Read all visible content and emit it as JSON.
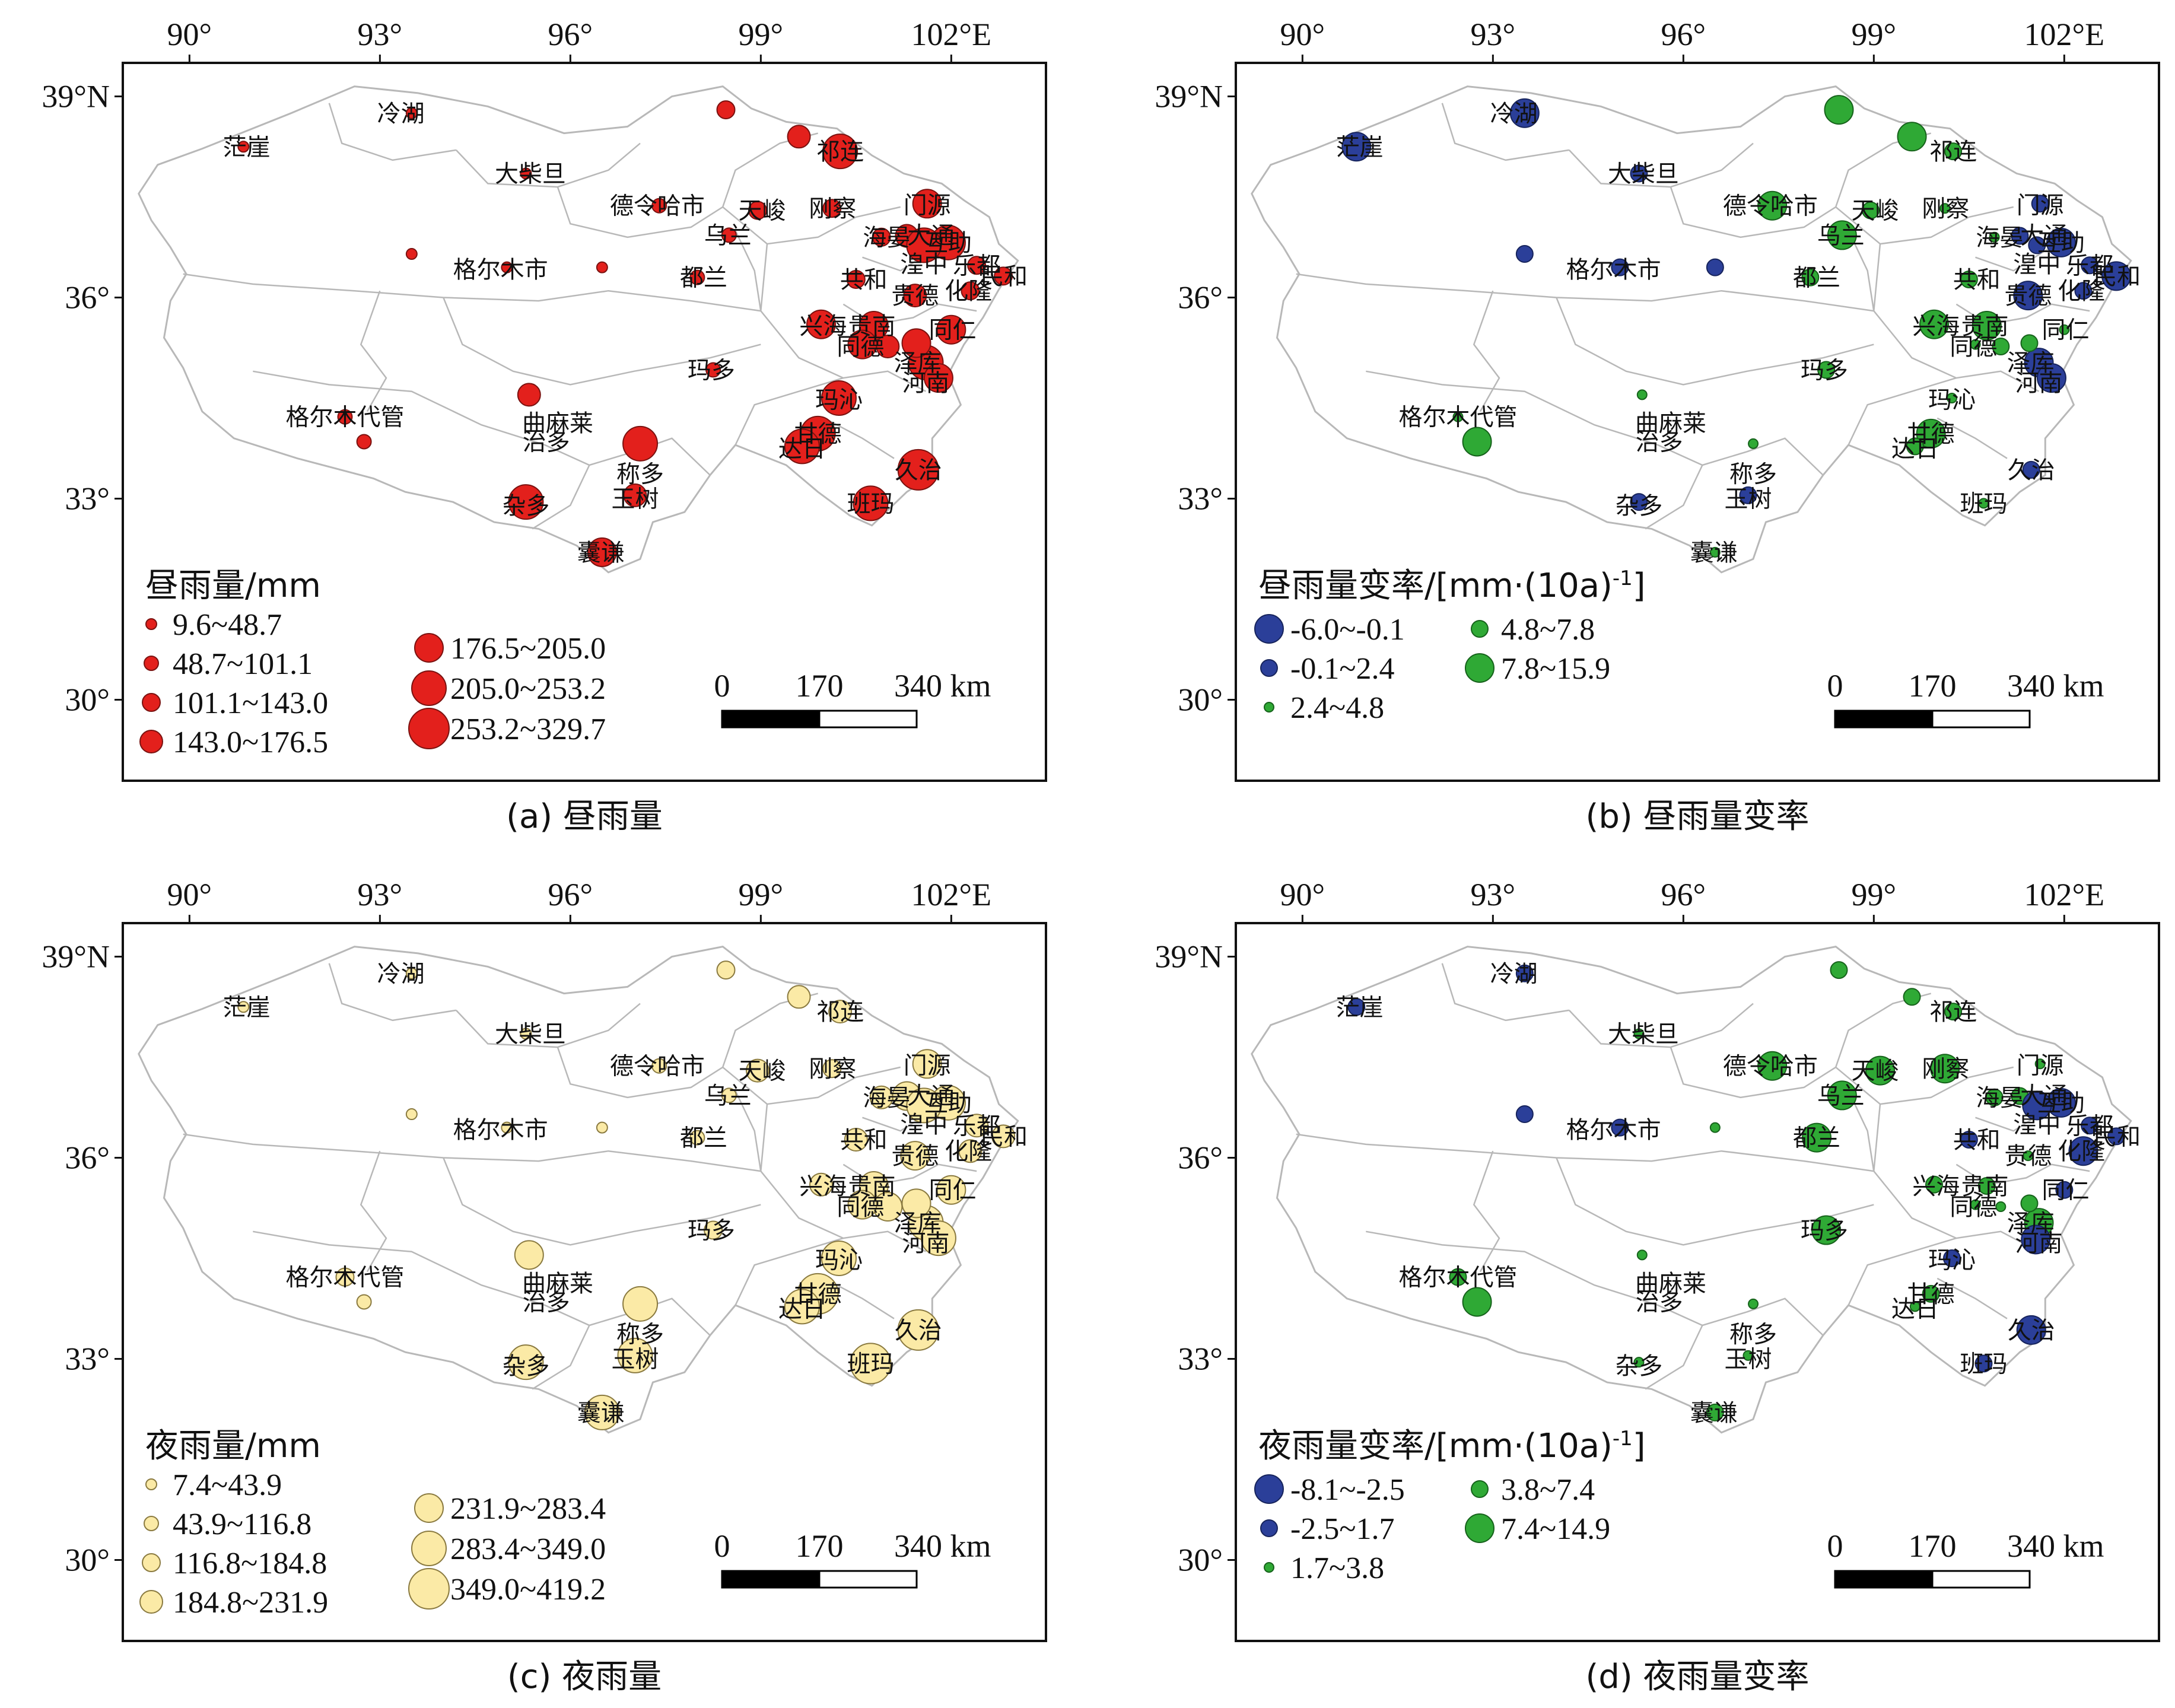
{
  "lon_ticks": [
    "90°",
    "93°",
    "96°",
    "99°",
    "102°E"
  ],
  "lat_ticks": [
    "39°N",
    "36°",
    "33°",
    "30°"
  ],
  "scale_bar": {
    "labels": [
      "0",
      "170",
      "340",
      "km"
    ]
  },
  "stations": [
    {
      "name": "茫崖",
      "lon": 90.9,
      "lat": 38.25
    },
    {
      "name": "冷湖",
      "lon": 93.33,
      "lat": 38.75
    },
    {
      "name": "大柴旦",
      "lon": 95.37,
      "lat": 37.85
    },
    {
      "name": "德令哈市",
      "lon": 97.37,
      "lat": 37.37
    },
    {
      "name": "天峻",
      "lon": 99.02,
      "lat": 37.3
    },
    {
      "name": "祁连",
      "lon": 100.25,
      "lat": 38.18
    },
    {
      "name": "刚察",
      "lon": 100.13,
      "lat": 37.33
    },
    {
      "name": "门源",
      "lon": 101.62,
      "lat": 37.38
    },
    {
      "name": "大通",
      "lon": 101.68,
      "lat": 36.93
    },
    {
      "name": "海晏",
      "lon": 100.98,
      "lat": 36.9
    },
    {
      "name": "互助",
      "lon": 101.95,
      "lat": 36.82
    },
    {
      "name": "乐都",
      "lon": 102.4,
      "lat": 36.48
    },
    {
      "name": "湟中",
      "lon": 101.57,
      "lat": 36.5
    },
    {
      "name": "化隆",
      "lon": 102.27,
      "lat": 36.1
    },
    {
      "name": "民和",
      "lon": 102.83,
      "lat": 36.32
    },
    {
      "name": "乌兰",
      "lon": 98.48,
      "lat": 36.93
    },
    {
      "name": "共和",
      "lon": 100.62,
      "lat": 36.27
    },
    {
      "name": "贵南",
      "lon": 100.75,
      "lat": 35.58
    },
    {
      "name": "贵德",
      "lon": 101.43,
      "lat": 36.03
    },
    {
      "name": "同仁",
      "lon": 102.02,
      "lat": 35.52
    },
    {
      "name": "格尔木市",
      "lon": 94.9,
      "lat": 36.42
    },
    {
      "name": "都兰",
      "lon": 98.1,
      "lat": 36.3
    },
    {
      "name": "兴海",
      "lon": 99.98,
      "lat": 35.58
    },
    {
      "name": "同德",
      "lon": 100.57,
      "lat": 35.27
    },
    {
      "name": "泽库",
      "lon": 101.47,
      "lat": 35.03
    },
    {
      "name": "治多",
      "lon": 95.62,
      "lat": 33.85
    },
    {
      "name": "曲麻莱",
      "lon": 95.8,
      "lat": 34.13
    },
    {
      "name": "玛多",
      "lon": 98.22,
      "lat": 34.92
    },
    {
      "name": "玛沁",
      "lon": 100.23,
      "lat": 34.48
    },
    {
      "name": "河南",
      "lon": 101.6,
      "lat": 34.73
    },
    {
      "name": "格尔木代管",
      "lon": 92.45,
      "lat": 34.22
    },
    {
      "name": "称多",
      "lon": 97.1,
      "lat": 33.37
    },
    {
      "name": "甘德",
      "lon": 99.9,
      "lat": 33.97
    },
    {
      "name": "达日",
      "lon": 99.65,
      "lat": 33.75
    },
    {
      "name": "久治",
      "lon": 101.48,
      "lat": 33.43
    },
    {
      "name": "杂多",
      "lon": 95.3,
      "lat": 32.9
    },
    {
      "name": "玉树",
      "lon": 97.02,
      "lat": 33.0
    },
    {
      "name": "班玛",
      "lon": 100.73,
      "lat": 32.93
    },
    {
      "name": "囊谦",
      "lon": 96.48,
      "lat": 32.2
    }
  ],
  "colors": {
    "red": "#e3201c",
    "cream": "#fbeaa6",
    "cream_edge": "#8a7a40",
    "blue": "#2b3f99",
    "green": "#2fa935",
    "outline": "#b8b8b8"
  },
  "panels": [
    {
      "id": "a",
      "caption": "(a) 昼雨量",
      "legend_title": "昼雨量/mm",
      "color": "red",
      "classes": [
        {
          "label": "9.6~48.7",
          "size": 1
        },
        {
          "label": "48.7~101.1",
          "size": 2
        },
        {
          "label": "101.1~143.0",
          "size": 3
        },
        {
          "label": "143.0~176.5",
          "size": 4
        },
        {
          "label": "176.5~205.0",
          "size": 5
        },
        {
          "label": "205.0~253.2",
          "size": 6
        },
        {
          "label": "253.2~329.7",
          "size": 7
        }
      ]
    },
    {
      "id": "b",
      "caption": "(b) 昼雨量变率",
      "legend_title": "昼雨量变率/[mm·(10a)",
      "legend_sup": "-1",
      "legend_title_end": "]",
      "classes": [
        {
          "label": "-6.0~-0.1",
          "size": 5,
          "color": "blue"
        },
        {
          "label": "-0.1~2.4",
          "size": 3,
          "color": "blue"
        },
        {
          "label": "2.4~4.8",
          "size": 1,
          "color": "green"
        },
        {
          "label": "4.8~7.8",
          "size": 3,
          "color": "green"
        },
        {
          "label": "7.8~15.9",
          "size": 5,
          "color": "green"
        }
      ]
    },
    {
      "id": "c",
      "caption": "(c) 夜雨量",
      "legend_title": "夜雨量/mm",
      "color": "cream",
      "classes": [
        {
          "label": "7.4~43.9",
          "size": 1
        },
        {
          "label": "43.9~116.8",
          "size": 2
        },
        {
          "label": "116.8~184.8",
          "size": 3
        },
        {
          "label": "184.8~231.9",
          "size": 4
        },
        {
          "label": "231.9~283.4",
          "size": 5
        },
        {
          "label": "283.4~349.0",
          "size": 6
        },
        {
          "label": "349.0~419.2",
          "size": 7
        }
      ]
    },
    {
      "id": "d",
      "caption": "(d) 夜雨量变率",
      "legend_title": "夜雨量变率/[mm·(10a)",
      "legend_sup": "-1",
      "legend_title_end": "]",
      "classes": [
        {
          "label": "-8.1~-2.5",
          "size": 5,
          "color": "blue"
        },
        {
          "label": "-2.5~1.7",
          "size": 3,
          "color": "blue"
        },
        {
          "label": "1.7~3.8",
          "size": 1,
          "color": "green"
        },
        {
          "label": "3.8~7.4",
          "size": 3,
          "color": "green"
        },
        {
          "label": "7.4~14.9",
          "size": 5,
          "color": "green"
        }
      ]
    }
  ],
  "points": {
    "a": [
      [
        90.85,
        38.25,
        1
      ],
      [
        93.5,
        38.75,
        1
      ],
      [
        95.3,
        37.85,
        1
      ],
      [
        97.4,
        37.37,
        2
      ],
      [
        98.45,
        38.8,
        3
      ],
      [
        98.95,
        37.3,
        3
      ],
      [
        99.6,
        38.4,
        4
      ],
      [
        100.25,
        38.18,
        6
      ],
      [
        100.12,
        37.33,
        3
      ],
      [
        101.62,
        37.4,
        5
      ],
      [
        101.3,
        36.92,
        4
      ],
      [
        100.9,
        36.9,
        3
      ],
      [
        101.95,
        36.82,
        6
      ],
      [
        102.4,
        36.48,
        3
      ],
      [
        101.57,
        36.78,
        6
      ],
      [
        102.3,
        36.1,
        3
      ],
      [
        102.82,
        36.32,
        3
      ],
      [
        98.5,
        36.93,
        2
      ],
      [
        100.5,
        36.27,
        3
      ],
      [
        100.78,
        35.58,
        5
      ],
      [
        101.0,
        35.27,
        4
      ],
      [
        101.43,
        36.03,
        4
      ],
      [
        102.0,
        35.52,
        5
      ],
      [
        101.6,
        35.03,
        6
      ],
      [
        101.8,
        34.8,
        5
      ],
      [
        93.5,
        36.65,
        1
      ],
      [
        95.0,
        36.45,
        1
      ],
      [
        96.5,
        36.45,
        1
      ],
      [
        98.0,
        36.3,
        2
      ],
      [
        99.95,
        35.6,
        5
      ],
      [
        100.6,
        35.3,
        5
      ],
      [
        101.45,
        35.32,
        5
      ],
      [
        92.75,
        33.85,
        2
      ],
      [
        95.35,
        34.55,
        4
      ],
      [
        98.25,
        34.92,
        2
      ],
      [
        100.23,
        34.5,
        6
      ],
      [
        92.45,
        34.22,
        2
      ],
      [
        97.1,
        33.82,
        6
      ],
      [
        99.9,
        33.97,
        6
      ],
      [
        99.65,
        33.78,
        6
      ],
      [
        101.48,
        33.43,
        7
      ],
      [
        95.3,
        32.95,
        6
      ],
      [
        97.02,
        33.05,
        4
      ],
      [
        100.73,
        32.93,
        6
      ],
      [
        96.5,
        32.2,
        5
      ]
    ],
    "b": [
      [
        90.85,
        38.25,
        "nb"
      ],
      [
        93.5,
        38.75,
        "nb"
      ],
      [
        95.3,
        37.85,
        "sb"
      ],
      [
        97.4,
        37.37,
        "ng"
      ],
      [
        98.45,
        38.8,
        "ng"
      ],
      [
        98.95,
        37.3,
        "sg"
      ],
      [
        99.6,
        38.4,
        "ng"
      ],
      [
        100.25,
        38.18,
        "sg"
      ],
      [
        100.12,
        37.33,
        "xg"
      ],
      [
        101.62,
        37.4,
        "sb"
      ],
      [
        101.3,
        36.92,
        "sb"
      ],
      [
        100.9,
        36.9,
        "xg"
      ],
      [
        101.95,
        36.82,
        "nb"
      ],
      [
        102.4,
        36.48,
        "sb"
      ],
      [
        101.57,
        36.78,
        "sb"
      ],
      [
        102.3,
        36.1,
        "sb"
      ],
      [
        102.82,
        36.32,
        "nb"
      ],
      [
        98.5,
        36.93,
        "ng"
      ],
      [
        100.5,
        36.27,
        "sg"
      ],
      [
        100.78,
        35.58,
        "ng"
      ],
      [
        101.0,
        35.27,
        "sg"
      ],
      [
        101.43,
        36.03,
        "nb"
      ],
      [
        102.0,
        35.52,
        "xg"
      ],
      [
        101.6,
        35.03,
        "nb"
      ],
      [
        101.8,
        34.8,
        "nb"
      ],
      [
        93.5,
        36.65,
        "sb"
      ],
      [
        95.0,
        36.45,
        "sb"
      ],
      [
        96.5,
        36.45,
        "sb"
      ],
      [
        98.0,
        36.3,
        "sg"
      ],
      [
        99.95,
        35.6,
        "ng"
      ],
      [
        100.6,
        35.3,
        "xg"
      ],
      [
        101.45,
        35.32,
        "sg"
      ],
      [
        92.75,
        33.85,
        "ng"
      ],
      [
        95.35,
        34.55,
        "xg"
      ],
      [
        98.25,
        34.92,
        "sg"
      ],
      [
        100.23,
        34.5,
        "xg"
      ],
      [
        92.45,
        34.22,
        "xg"
      ],
      [
        97.1,
        33.82,
        "xg"
      ],
      [
        99.9,
        33.97,
        "ng"
      ],
      [
        99.65,
        33.78,
        "sg"
      ],
      [
        101.48,
        33.43,
        "sb"
      ],
      [
        95.3,
        32.95,
        "sb"
      ],
      [
        97.02,
        33.05,
        "sb"
      ],
      [
        100.73,
        32.93,
        "xg"
      ],
      [
        96.5,
        32.2,
        "xg"
      ]
    ],
    "c": [
      [
        90.85,
        38.25,
        1
      ],
      [
        93.5,
        38.75,
        1
      ],
      [
        95.3,
        37.85,
        1
      ],
      [
        97.4,
        37.37,
        2
      ],
      [
        98.45,
        38.8,
        3
      ],
      [
        98.95,
        37.3,
        4
      ],
      [
        99.6,
        38.4,
        4
      ],
      [
        100.25,
        38.18,
        4
      ],
      [
        100.12,
        37.33,
        3
      ],
      [
        101.62,
        37.4,
        5
      ],
      [
        101.3,
        36.92,
        5
      ],
      [
        100.9,
        36.9,
        4
      ],
      [
        101.95,
        36.82,
        6
      ],
      [
        102.4,
        36.48,
        4
      ],
      [
        101.57,
        36.78,
        6
      ],
      [
        102.3,
        36.1,
        4
      ],
      [
        102.82,
        36.32,
        4
      ],
      [
        98.5,
        36.93,
        2
      ],
      [
        100.5,
        36.27,
        4
      ],
      [
        100.78,
        35.58,
        5
      ],
      [
        101.0,
        35.27,
        5
      ],
      [
        101.43,
        36.03,
        5
      ],
      [
        102.0,
        35.52,
        5
      ],
      [
        101.6,
        35.03,
        6
      ],
      [
        101.8,
        34.8,
        6
      ],
      [
        93.5,
        36.65,
        1
      ],
      [
        95.0,
        36.45,
        1
      ],
      [
        96.5,
        36.45,
        1
      ],
      [
        98.0,
        36.3,
        2
      ],
      [
        99.95,
        35.6,
        4
      ],
      [
        100.6,
        35.3,
        5
      ],
      [
        101.45,
        35.32,
        5
      ],
      [
        92.75,
        33.85,
        2
      ],
      [
        95.35,
        34.55,
        5
      ],
      [
        98.25,
        34.92,
        3
      ],
      [
        100.23,
        34.5,
        6
      ],
      [
        92.45,
        34.22,
        3
      ],
      [
        97.1,
        33.82,
        6
      ],
      [
        99.9,
        33.97,
        7
      ],
      [
        99.65,
        33.78,
        6
      ],
      [
        101.48,
        33.43,
        7
      ],
      [
        95.3,
        32.95,
        6
      ],
      [
        97.02,
        33.05,
        6
      ],
      [
        100.73,
        32.93,
        7
      ],
      [
        96.5,
        32.2,
        6
      ]
    ],
    "d": [
      [
        90.85,
        38.25,
        "sb"
      ],
      [
        93.5,
        38.75,
        "sb"
      ],
      [
        95.3,
        37.85,
        "xg"
      ],
      [
        97.4,
        37.37,
        "ng"
      ],
      [
        98.45,
        38.8,
        "sg"
      ],
      [
        99.1,
        37.3,
        "ng"
      ],
      [
        99.6,
        38.4,
        "sg"
      ],
      [
        100.25,
        38.18,
        "sg"
      ],
      [
        100.12,
        37.33,
        "ng"
      ],
      [
        101.62,
        37.4,
        "xg"
      ],
      [
        101.3,
        36.92,
        "sg"
      ],
      [
        100.9,
        36.9,
        "sg"
      ],
      [
        101.95,
        36.82,
        "nb"
      ],
      [
        102.4,
        36.48,
        "sb"
      ],
      [
        101.57,
        36.78,
        "nb"
      ],
      [
        102.3,
        36.1,
        "nb"
      ],
      [
        102.82,
        36.32,
        "sb"
      ],
      [
        98.5,
        36.93,
        "ng"
      ],
      [
        100.5,
        36.27,
        "sb"
      ],
      [
        100.78,
        35.58,
        "sg"
      ],
      [
        101.0,
        35.27,
        "xg"
      ],
      [
        101.43,
        36.03,
        "xg"
      ],
      [
        102.0,
        35.52,
        "sb"
      ],
      [
        101.6,
        35.03,
        "ng"
      ],
      [
        101.55,
        34.78,
        "nb"
      ],
      [
        93.5,
        36.65,
        "sb"
      ],
      [
        95.0,
        36.45,
        "sb"
      ],
      [
        96.5,
        36.45,
        "xg"
      ],
      [
        98.1,
        36.3,
        "ng"
      ],
      [
        99.95,
        35.6,
        "sg"
      ],
      [
        100.6,
        35.3,
        "xg"
      ],
      [
        101.45,
        35.32,
        "sg"
      ],
      [
        92.75,
        33.85,
        "ng"
      ],
      [
        95.35,
        34.55,
        "xg"
      ],
      [
        98.25,
        34.92,
        "ng"
      ],
      [
        100.23,
        34.5,
        "sb"
      ],
      [
        92.45,
        34.22,
        "sg"
      ],
      [
        97.1,
        33.82,
        "xg"
      ],
      [
        99.9,
        33.97,
        "sg"
      ],
      [
        99.65,
        33.78,
        "xg"
      ],
      [
        101.48,
        33.43,
        "nb"
      ],
      [
        95.3,
        32.95,
        "xg"
      ],
      [
        97.02,
        33.05,
        "xg"
      ],
      [
        100.73,
        32.93,
        "sb"
      ],
      [
        96.5,
        32.2,
        "sg"
      ]
    ]
  }
}
